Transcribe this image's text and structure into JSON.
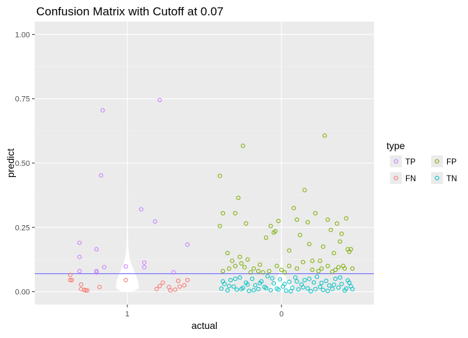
{
  "chart_data": {
    "type": "scatter",
    "title": "Confusion Matrix with Cutoff at 0.07",
    "xlabel": "actual",
    "ylabel": "predict",
    "categories": [
      "1",
      "0"
    ],
    "ylim": [
      -0.05,
      1.05
    ],
    "yticks": [
      0.0,
      0.25,
      0.5,
      0.75,
      1.0
    ],
    "ytick_labels": [
      "0.00",
      "0.25",
      "0.50",
      "0.75",
      "1.00"
    ],
    "cutoff": 0.07,
    "grid": true,
    "legend": {
      "title": "type",
      "position": "right",
      "entries": [
        "TP",
        "FP",
        "FN",
        "TN"
      ]
    },
    "colors": {
      "TP": "#c77cff",
      "FP": "#7cae00",
      "FN": "#f8766d",
      "TN": "#00bfc4",
      "cutoff_line": "#6b6bff",
      "panel_bg": "#ebebeb",
      "grid_major": "#ffffff",
      "grid_minor": "#f5f5f5",
      "violin": "#ffffff"
    },
    "violins": [
      {
        "category": "1",
        "profile": [
          [
            0.0,
            0.45
          ],
          [
            0.01,
            0.9
          ],
          [
            0.02,
            1.0
          ],
          [
            0.035,
            0.95
          ],
          [
            0.05,
            0.85
          ],
          [
            0.07,
            0.7
          ],
          [
            0.09,
            0.5
          ],
          [
            0.11,
            0.32
          ],
          [
            0.13,
            0.2
          ],
          [
            0.15,
            0.13
          ],
          [
            0.18,
            0.08
          ],
          [
            0.22,
            0.055
          ],
          [
            0.28,
            0.04
          ],
          [
            0.35,
            0.03
          ],
          [
            0.45,
            0.025
          ],
          [
            0.55,
            0.02
          ],
          [
            0.65,
            0.015
          ],
          [
            0.73,
            0.008
          ],
          [
            0.75,
            0.0
          ]
        ]
      },
      {
        "category": "0",
        "profile": [
          [
            0.0,
            0.6
          ],
          [
            0.01,
            0.98
          ],
          [
            0.02,
            1.0
          ],
          [
            0.04,
            0.6
          ],
          [
            0.06,
            0.3
          ],
          [
            0.08,
            0.15
          ],
          [
            0.12,
            0.07
          ],
          [
            0.2,
            0.03
          ],
          [
            0.3,
            0.015
          ],
          [
            0.5,
            0.008
          ],
          [
            0.62,
            0.004
          ],
          [
            1.0,
            0.0
          ]
        ]
      }
    ],
    "series": [
      {
        "name": "TP",
        "points": [
          [
            0.69,
            0.19
          ],
          [
            0.69,
            0.135
          ],
          [
            0.69,
            0.08
          ],
          [
            0.84,
            0.705
          ],
          [
            0.83,
            0.452
          ],
          [
            0.85,
            0.095
          ],
          [
            0.8,
            0.165
          ],
          [
            0.8,
            0.08
          ],
          [
            0.8,
            0.075
          ],
          [
            0.99,
            0.098
          ],
          [
            1.09,
            0.32
          ],
          [
            1.11,
            0.113
          ],
          [
            1.11,
            0.095
          ],
          [
            1.18,
            0.273
          ],
          [
            1.21,
            0.745
          ],
          [
            1.3,
            0.075
          ],
          [
            1.39,
            0.183
          ]
        ]
      },
      {
        "name": "FN",
        "points": [
          [
            0.63,
            0.065
          ],
          [
            0.63,
            0.045
          ],
          [
            0.64,
            0.045
          ],
          [
            0.7,
            0.028
          ],
          [
            0.7,
            0.01
          ],
          [
            0.72,
            0.007
          ],
          [
            0.73,
            0.005
          ],
          [
            0.74,
            0.005
          ],
          [
            0.82,
            0.018
          ],
          [
            0.99,
            0.045
          ],
          [
            1.19,
            0.01
          ],
          [
            1.21,
            0.022
          ],
          [
            1.23,
            0.035
          ],
          [
            1.27,
            0.018
          ],
          [
            1.28,
            0.005
          ],
          [
            1.31,
            0.008
          ],
          [
            1.33,
            0.042
          ],
          [
            1.34,
            0.02
          ],
          [
            1.37,
            0.025
          ],
          [
            1.39,
            0.045
          ]
        ]
      },
      {
        "name": "FP",
        "points": [
          [
            1.6,
            0.45
          ],
          [
            1.6,
            0.255
          ],
          [
            1.62,
            0.305
          ],
          [
            1.7,
            0.305
          ],
          [
            1.72,
            0.365
          ],
          [
            1.75,
            0.567
          ],
          [
            1.77,
            0.265
          ],
          [
            1.65,
            0.15
          ],
          [
            1.68,
            0.12
          ],
          [
            1.73,
            0.135
          ],
          [
            1.78,
            0.125
          ],
          [
            1.66,
            0.09
          ],
          [
            1.7,
            0.1
          ],
          [
            1.74,
            0.11
          ],
          [
            1.76,
            0.095
          ],
          [
            1.82,
            0.09
          ],
          [
            1.86,
            0.105
          ],
          [
            1.88,
            0.075
          ],
          [
            1.62,
            0.08
          ],
          [
            1.9,
            0.21
          ],
          [
            1.93,
            0.255
          ],
          [
            1.95,
            0.23
          ],
          [
            1.96,
            0.235
          ],
          [
            1.98,
            0.275
          ],
          [
            1.97,
            0.1
          ],
          [
            2.0,
            0.085
          ],
          [
            2.05,
            0.16
          ],
          [
            2.08,
            0.325
          ],
          [
            2.1,
            0.28
          ],
          [
            2.12,
            0.22
          ],
          [
            2.15,
            0.395
          ],
          [
            2.17,
            0.27
          ],
          [
            2.18,
            0.185
          ],
          [
            2.2,
            0.12
          ],
          [
            2.22,
            0.305
          ],
          [
            2.25,
            0.12
          ],
          [
            2.27,
            0.175
          ],
          [
            2.28,
            0.607
          ],
          [
            2.3,
            0.28
          ],
          [
            2.32,
            0.24
          ],
          [
            2.34,
            0.15
          ],
          [
            2.36,
            0.265
          ],
          [
            2.38,
            0.195
          ],
          [
            2.39,
            0.225
          ],
          [
            2.4,
            0.1
          ],
          [
            2.41,
            0.09
          ],
          [
            2.42,
            0.285
          ],
          [
            2.43,
            0.165
          ],
          [
            2.44,
            0.155
          ],
          [
            2.45,
            0.165
          ],
          [
            2.46,
            0.09
          ],
          [
            2.05,
            0.1
          ],
          [
            2.1,
            0.09
          ],
          [
            2.14,
            0.115
          ],
          [
            2.2,
            0.085
          ],
          [
            2.26,
            0.09
          ],
          [
            2.3,
            0.1
          ],
          [
            2.35,
            0.085
          ],
          [
            1.85,
            0.08
          ],
          [
            1.8,
            0.075
          ],
          [
            1.92,
            0.08
          ],
          [
            2.02,
            0.075
          ],
          [
            2.24,
            0.08
          ],
          [
            2.33,
            0.078
          ],
          [
            2.37,
            0.095
          ]
        ]
      },
      {
        "name": "TN",
        "points": [
          [
            1.61,
            0.012
          ],
          [
            1.63,
            0.03
          ],
          [
            1.65,
            0.005
          ],
          [
            1.67,
            0.045
          ],
          [
            1.69,
            0.02
          ],
          [
            1.71,
            0.008
          ],
          [
            1.73,
            0.055
          ],
          [
            1.75,
            0.015
          ],
          [
            1.77,
            0.035
          ],
          [
            1.79,
            0.003
          ],
          [
            1.81,
            0.05
          ],
          [
            1.83,
            0.025
          ],
          [
            1.85,
            0.01
          ],
          [
            1.87,
            0.04
          ],
          [
            1.89,
            0.018
          ],
          [
            1.91,
            0.06
          ],
          [
            1.93,
            0.006
          ],
          [
            1.95,
            0.032
          ],
          [
            1.97,
            0.012
          ],
          [
            1.99,
            0.048
          ],
          [
            2.01,
            0.02
          ],
          [
            2.03,
            0.004
          ],
          [
            2.05,
            0.038
          ],
          [
            2.07,
            0.015
          ],
          [
            2.09,
            0.055
          ],
          [
            2.11,
            0.009
          ],
          [
            2.13,
            0.028
          ],
          [
            2.15,
            0.045
          ],
          [
            2.17,
            0.013
          ],
          [
            2.19,
            0.002
          ],
          [
            2.21,
            0.036
          ],
          [
            2.23,
            0.058
          ],
          [
            2.25,
            0.019
          ],
          [
            2.27,
            0.007
          ],
          [
            2.29,
            0.042
          ],
          [
            2.31,
            0.024
          ],
          [
            2.33,
            0.011
          ],
          [
            2.35,
            0.05
          ],
          [
            2.37,
            0.016
          ],
          [
            2.39,
            0.03
          ],
          [
            2.41,
            0.005
          ],
          [
            2.43,
            0.044
          ],
          [
            2.45,
            0.021
          ],
          [
            2.46,
            0.01
          ],
          [
            1.62,
            0.04
          ],
          [
            1.66,
            0.022
          ],
          [
            1.7,
            0.05
          ],
          [
            1.74,
            0.01
          ],
          [
            1.78,
            0.028
          ],
          [
            1.82,
            0.006
          ],
          [
            1.86,
            0.033
          ],
          [
            1.9,
            0.014
          ],
          [
            1.94,
            0.052
          ],
          [
            1.98,
            0.008
          ],
          [
            2.02,
            0.03
          ],
          [
            2.06,
            0.002
          ],
          [
            2.1,
            0.04
          ],
          [
            2.14,
            0.017
          ],
          [
            2.18,
            0.05
          ],
          [
            2.22,
            0.01
          ],
          [
            2.26,
            0.034
          ],
          [
            2.3,
            0.003
          ],
          [
            2.34,
            0.027
          ],
          [
            2.38,
            0.055
          ],
          [
            2.42,
            0.012
          ],
          [
            2.44,
            0.035
          ]
        ]
      }
    ]
  }
}
